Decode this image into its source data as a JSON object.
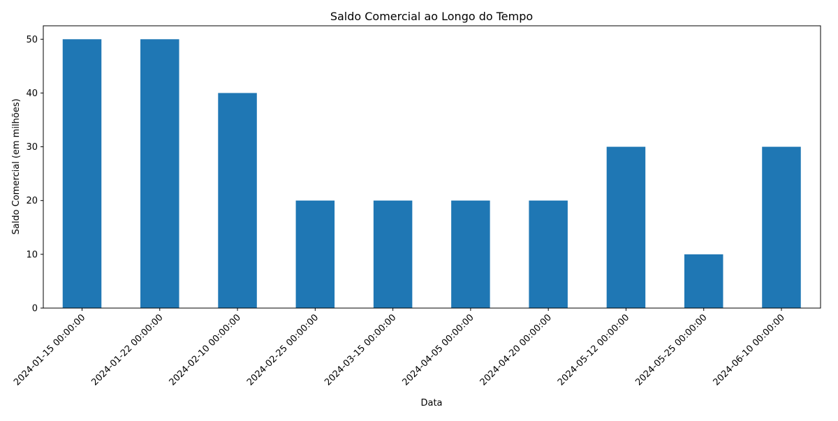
{
  "chart_data": {
    "type": "bar",
    "title": "Saldo Comercial ao Longo do Tempo",
    "xlabel": "Data",
    "ylabel": "Saldo Comercial (em milhões)",
    "categories": [
      "2024-01-15 00:00:00",
      "2024-01-22 00:00:00",
      "2024-02-10 00:00:00",
      "2024-02-25 00:00:00",
      "2024-03-15 00:00:00",
      "2024-04-05 00:00:00",
      "2024-04-20 00:00:00",
      "2024-05-12 00:00:00",
      "2024-05-25 00:00:00",
      "2024-06-10 00:00:00"
    ],
    "values": [
      50,
      50,
      40,
      20,
      20,
      20,
      20,
      30,
      10,
      30
    ],
    "ylim": [
      0,
      52.5
    ],
    "yticks": [
      0,
      10,
      20,
      30,
      40,
      50
    ],
    "grid": false,
    "bar_color": "#1f77b4"
  }
}
